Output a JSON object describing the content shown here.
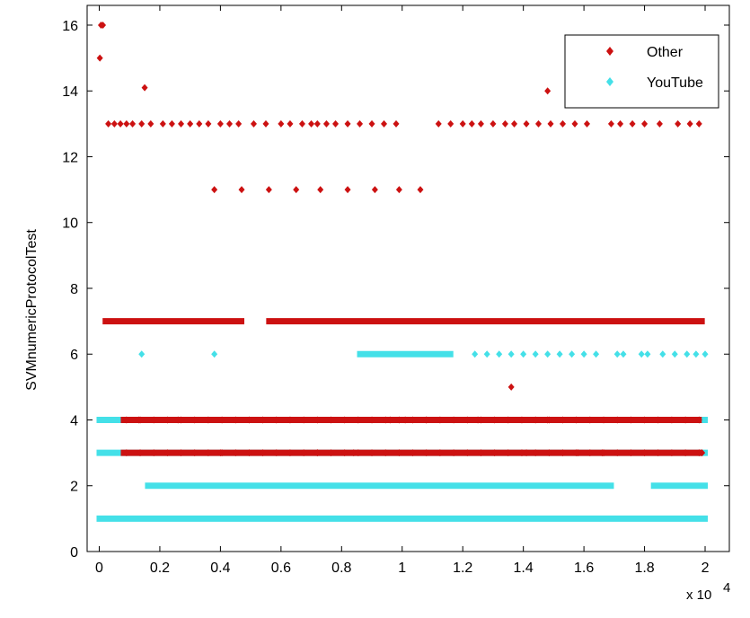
{
  "chart_data": {
    "type": "scatter",
    "title": "",
    "xlabel": "",
    "ylabel": "SVMnumericProtocolTest",
    "x_exponent_base": "x 10",
    "x_exponent_power": "4",
    "xlim": [
      -0.04,
      2.08
    ],
    "ylim": [
      0,
      16.6
    ],
    "x_ticks": [
      0,
      0.2,
      0.4,
      0.6,
      0.8,
      1,
      1.2,
      1.4,
      1.6,
      1.8,
      2
    ],
    "x_tick_labels": [
      "0",
      "0.2",
      "0.4",
      "0.6",
      "0.8",
      "1",
      "1.2",
      "1.4",
      "1.6",
      "1.8",
      "2"
    ],
    "y_ticks": [
      0,
      2,
      4,
      6,
      8,
      10,
      12,
      14,
      16
    ],
    "y_tick_labels": [
      "0",
      "2",
      "4",
      "6",
      "8",
      "10",
      "12",
      "14",
      "16"
    ],
    "grid": false,
    "legend_position": "top-right",
    "series": [
      {
        "name": "Other",
        "color": "#cc1111",
        "points": [
          [
            0.002,
            15
          ],
          [
            0.006,
            16
          ],
          [
            0.012,
            16
          ],
          [
            0.15,
            14.1
          ],
          [
            1.48,
            14
          ],
          [
            1.36,
            5
          ],
          [
            0.38,
            11
          ],
          [
            0.47,
            11
          ],
          [
            0.56,
            11
          ],
          [
            0.65,
            11
          ],
          [
            0.73,
            11
          ],
          [
            0.82,
            11
          ],
          [
            0.91,
            11
          ],
          [
            0.99,
            11
          ],
          [
            1.06,
            11
          ],
          [
            0.03,
            13
          ],
          [
            0.05,
            13
          ],
          [
            0.07,
            13
          ],
          [
            0.09,
            13
          ],
          [
            0.11,
            13
          ],
          [
            0.14,
            13
          ],
          [
            0.17,
            13
          ],
          [
            0.21,
            13
          ],
          [
            0.24,
            13
          ],
          [
            0.27,
            13
          ],
          [
            0.3,
            13
          ],
          [
            0.33,
            13
          ],
          [
            0.36,
            13
          ],
          [
            0.4,
            13
          ],
          [
            0.43,
            13
          ],
          [
            0.46,
            13
          ],
          [
            0.51,
            13
          ],
          [
            0.55,
            13
          ],
          [
            0.6,
            13
          ],
          [
            0.63,
            13
          ],
          [
            0.67,
            13
          ],
          [
            0.7,
            13
          ],
          [
            0.72,
            13
          ],
          [
            0.75,
            13
          ],
          [
            0.78,
            13
          ],
          [
            0.82,
            13
          ],
          [
            0.86,
            13
          ],
          [
            0.9,
            13
          ],
          [
            0.94,
            13
          ],
          [
            0.98,
            13
          ],
          [
            1.12,
            13
          ],
          [
            1.16,
            13
          ],
          [
            1.2,
            13
          ],
          [
            1.23,
            13
          ],
          [
            1.26,
            13
          ],
          [
            1.3,
            13
          ],
          [
            1.34,
            13
          ],
          [
            1.37,
            13
          ],
          [
            1.41,
            13
          ],
          [
            1.45,
            13
          ],
          [
            1.49,
            13
          ],
          [
            1.53,
            13
          ],
          [
            1.57,
            13
          ],
          [
            1.61,
            13
          ],
          [
            1.69,
            13
          ],
          [
            1.72,
            13
          ],
          [
            1.76,
            13
          ],
          [
            1.8,
            13
          ],
          [
            1.85,
            13
          ],
          [
            1.91,
            13
          ],
          [
            1.95,
            13
          ],
          [
            1.98,
            13
          ],
          [
            0.96,
            4
          ],
          [
            1.01,
            4
          ],
          [
            1.08,
            4
          ],
          [
            0.13,
            4
          ],
          [
            0.26,
            4
          ],
          [
            1.25,
            4
          ],
          [
            1.48,
            4
          ],
          [
            0.72,
            3
          ],
          [
            0.84,
            3
          ],
          [
            1.41,
            3
          ],
          [
            1.66,
            3
          ],
          [
            1.99,
            3
          ],
          [
            0.4,
            3
          ],
          [
            1.58,
            3
          ]
        ],
        "bands": [
          {
            "y": 7,
            "segments": [
              [
                0.02,
                0.47
              ],
              [
                0.56,
                1.99
              ]
            ]
          },
          {
            "y": 4,
            "segments": [
              [
                0.08,
                1.98
              ]
            ]
          },
          {
            "y": 3,
            "segments": [
              [
                0.08,
                1.98
              ]
            ]
          }
        ]
      },
      {
        "name": "YouTube",
        "color": "#44e0e8",
        "points": [
          [
            0.14,
            6
          ],
          [
            0.38,
            6
          ],
          [
            1.24,
            6
          ],
          [
            1.28,
            6
          ],
          [
            1.32,
            6
          ],
          [
            1.36,
            6
          ],
          [
            1.4,
            6
          ],
          [
            1.44,
            6
          ],
          [
            1.48,
            6
          ],
          [
            1.52,
            6
          ],
          [
            1.56,
            6
          ],
          [
            1.6,
            6
          ],
          [
            1.64,
            6
          ],
          [
            1.71,
            6
          ],
          [
            1.73,
            6
          ],
          [
            1.79,
            6
          ],
          [
            1.81,
            6
          ],
          [
            1.86,
            6
          ],
          [
            1.9,
            6
          ],
          [
            1.94,
            6
          ],
          [
            1.97,
            6
          ],
          [
            2.0,
            6
          ]
        ],
        "bands": [
          {
            "y": 1,
            "segments": [
              [
                0.0,
                2.0
              ]
            ]
          },
          {
            "y": 2,
            "segments": [
              [
                0.16,
                1.69
              ],
              [
                1.83,
                2.0
              ]
            ]
          },
          {
            "y": 3,
            "segments": [
              [
                0.0,
                2.0
              ]
            ]
          },
          {
            "y": 4,
            "segments": [
              [
                0.0,
                2.0
              ]
            ]
          },
          {
            "y": 6,
            "segments": [
              [
                0.86,
                1.16
              ]
            ]
          }
        ]
      }
    ]
  }
}
